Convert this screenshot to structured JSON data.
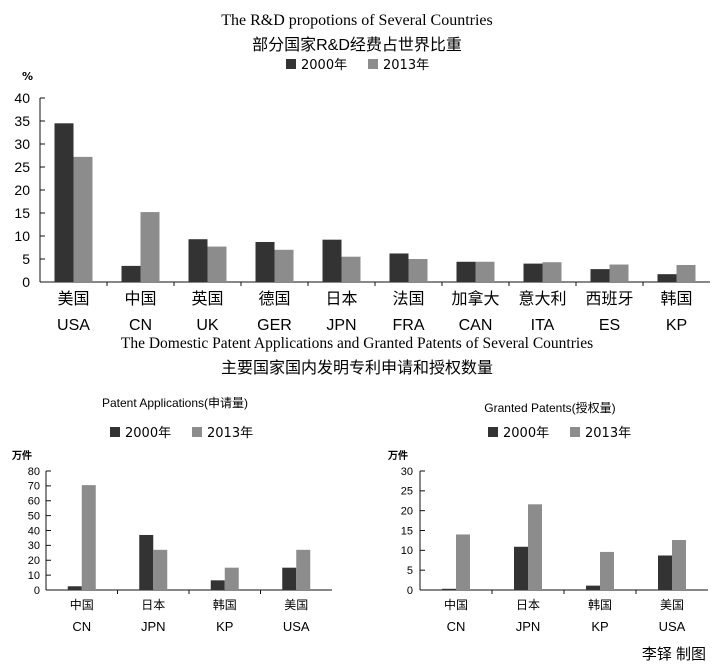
{
  "colors": {
    "series_2000": "#333333",
    "series_2013": "#8c8c8c",
    "axis": "#111111"
  },
  "chart_data": [
    {
      "type": "bar",
      "title": "The R&D propotions of Several Countries",
      "subtitle": "部分国家R&D经费占世界比重",
      "ylabel": "%",
      "ylim": [
        0,
        40
      ],
      "yticks": [
        0,
        5,
        10,
        15,
        20,
        25,
        30,
        35,
        40
      ],
      "categories_cn": [
        "美国",
        "中国",
        "英国",
        "德国",
        "日本",
        "法国",
        "加拿大",
        "意大利",
        "西班牙",
        "韩国"
      ],
      "categories": [
        "USA",
        "CN",
        "UK",
        "GER",
        "JPN",
        "FRA",
        "CAN",
        "ITA",
        "ES",
        "KP"
      ],
      "legend_position": "top-center",
      "series": [
        {
          "name": "2000年",
          "values": [
            34.5,
            3.5,
            9.3,
            8.7,
            9.2,
            6.2,
            4.4,
            4.0,
            2.8,
            1.7
          ]
        },
        {
          "name": "2013年",
          "values": [
            27.2,
            15.2,
            7.7,
            7.0,
            5.5,
            5.0,
            4.4,
            4.3,
            3.8,
            3.7
          ]
        }
      ]
    },
    {
      "type": "bar",
      "title": "Patent Applications(申请量)",
      "ylabel": "万件",
      "ylim": [
        0,
        80
      ],
      "yticks": [
        0,
        10,
        20,
        30,
        40,
        50,
        60,
        70,
        80
      ],
      "categories_cn": [
        "中国",
        "日本",
        "韩国",
        "美国"
      ],
      "categories": [
        "CN",
        "JPN",
        "KP",
        "USA"
      ],
      "legend_position": "top-center",
      "series": [
        {
          "name": "2000年",
          "values": [
            2.5,
            37,
            6.5,
            15
          ]
        },
        {
          "name": "2013年",
          "values": [
            70.5,
            27,
            15,
            27
          ]
        }
      ]
    },
    {
      "type": "bar",
      "title": "Granted Patents(授权量)",
      "ylabel": "万件",
      "ylim": [
        0,
        30
      ],
      "yticks": [
        0,
        5,
        10,
        15,
        20,
        25,
        30
      ],
      "categories_cn": [
        "中国",
        "日本",
        "韩国",
        "美国"
      ],
      "categories": [
        "CN",
        "JPN",
        "KP",
        "USA"
      ],
      "legend_position": "top-center",
      "series": [
        {
          "name": "2000年",
          "values": [
            0.3,
            10.9,
            1.1,
            8.7
          ]
        },
        {
          "name": "2013年",
          "values": [
            14.0,
            21.6,
            9.6,
            12.6
          ]
        }
      ]
    }
  ],
  "section2": {
    "title": "The Domestic Patent Applications and Granted Patents of Several Countries",
    "subtitle": "主要国家国内发明专利申请和授权数量"
  },
  "credit": "李铎  制图"
}
